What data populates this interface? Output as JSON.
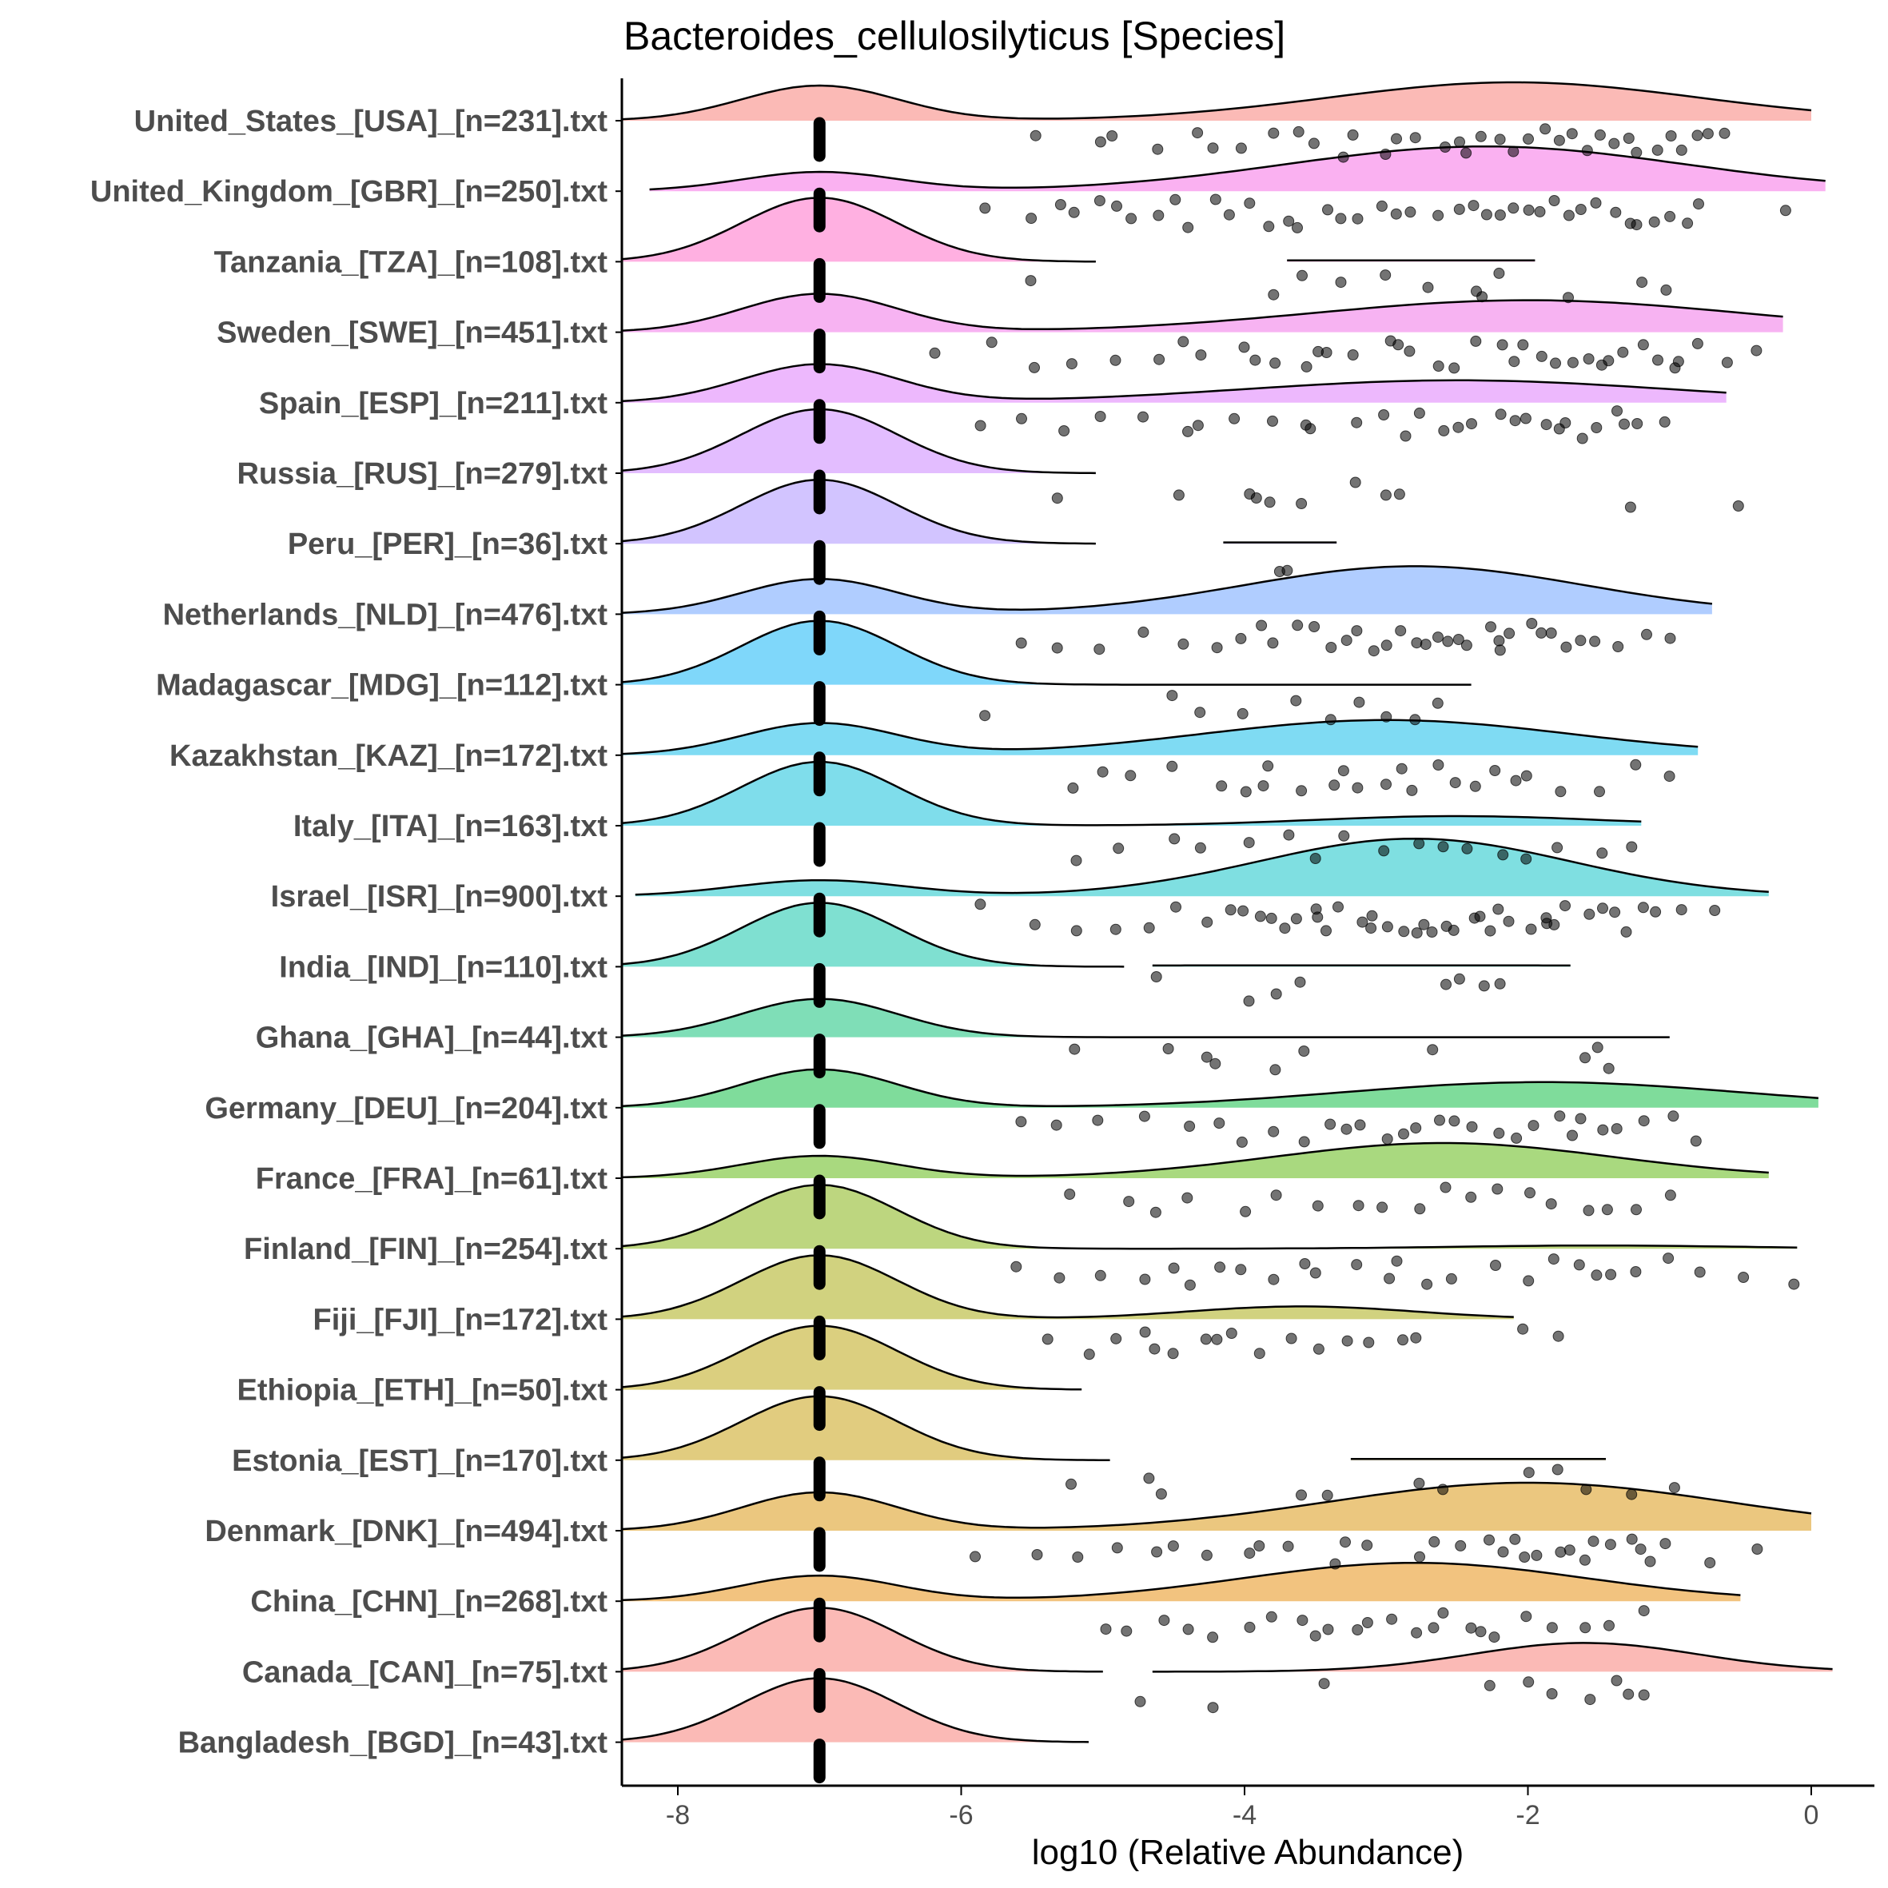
{
  "chart_data": {
    "type": "raincloud",
    "title": "Bacteroides_cellulosilyticus [Species]",
    "xlabel": "log10 (Relative Abundance)",
    "ylabel": "",
    "xlim": [
      -8.4,
      0.4
    ],
    "xticks": [
      -8,
      -6,
      -4,
      -2,
      0
    ],
    "xtick_labels": [
      "-8",
      "-6",
      "-4",
      "-2",
      "0"
    ],
    "zero_value": -7,
    "grid": false,
    "legend": "none",
    "series": [
      {
        "name": "United_States_[USA]_[n=231].txt",
        "color": "#F8766D",
        "low": -8.4,
        "high": 0.0,
        "ratio": 0.75,
        "peaks": [
          [
            -7,
            0.55,
            0.55
          ],
          [
            -2.1,
            0.6,
            1.3
          ]
        ],
        "points": [
          -5.5,
          -5.0,
          -4.6,
          -4.2,
          -3.8,
          -3.5,
          -3.2,
          -3.0,
          -2.8,
          -2.5,
          -2.3,
          -2.1,
          -1.9,
          -1.7,
          -1.5,
          -1.3,
          -1.1,
          -0.9,
          -0.7,
          -4.9,
          -4.0,
          -3.6,
          -2.9,
          -2.4,
          -2.0,
          -1.8,
          -1.6,
          -1.4,
          -1.2,
          -0.8,
          -0.6,
          -4.3,
          -3.3,
          -2.6,
          -2.2,
          -1.0
        ]
      },
      {
        "name": "United_Kingdom_[GBR]_[n=250].txt",
        "color": "#F564E3",
        "low": -8.2,
        "high": 0.1,
        "ratio": 0.95,
        "peaks": [
          [
            -7,
            0.3,
            0.55
          ],
          [
            -2.3,
            0.7,
            1.4
          ]
        ],
        "points": [
          -5.8,
          -5.5,
          -5.2,
          -5.0,
          -4.8,
          -4.6,
          -4.4,
          -4.2,
          -4.0,
          -3.8,
          -3.6,
          -3.4,
          -3.2,
          -3.0,
          -2.8,
          -2.6,
          -2.4,
          -2.2,
          -2.0,
          -1.8,
          -1.6,
          -1.4,
          -1.2,
          -1.0,
          -0.8,
          -0.2,
          -5.3,
          -4.9,
          -4.5,
          -4.1,
          -3.7,
          -3.3,
          -2.9,
          -2.5,
          -2.3,
          -2.1,
          -1.9,
          -1.7,
          -1.5,
          -1.3,
          -1.1,
          -0.9
        ]
      },
      {
        "name": "Tanzania_[TZA]_[n=108].txt",
        "color": "#FF61C3",
        "low": -8.4,
        "high": -5.05,
        "ratio": 0.2,
        "peaks": [
          [
            -7,
            1.0,
            0.55
          ]
        ],
        "low2": -3.7,
        "high2": -1.95,
        "points": [
          -5.5,
          -3.8,
          -3.6,
          -3.3,
          -3.0,
          -2.7,
          -2.4,
          -2.2,
          -1.7,
          -1.2,
          -1.0,
          -2.3
        ]
      },
      {
        "name": "Sweden_[SWE]_[n=451].txt",
        "color": "#F067E6",
        "low": -8.4,
        "high": -0.2,
        "ratio": 0.7,
        "peaks": [
          [
            -7,
            0.6,
            0.55
          ],
          [
            -2.0,
            0.5,
            1.5
          ]
        ],
        "points": [
          -6.2,
          -5.8,
          -5.5,
          -5.2,
          -4.9,
          -4.6,
          -4.3,
          -4.0,
          -3.8,
          -3.6,
          -3.4,
          -3.2,
          -3.0,
          -2.8,
          -2.6,
          -2.4,
          -2.2,
          -2.0,
          -1.8,
          -1.6,
          -1.4,
          -1.2,
          -1.0,
          -0.8,
          -0.6,
          -0.4,
          -4.4,
          -3.9,
          -3.5,
          -2.9,
          -2.5,
          -2.1,
          -1.9,
          -1.7,
          -1.5,
          -1.3,
          -1.1,
          -0.9
        ]
      },
      {
        "name": "Spain_[ESP]_[n=211].txt",
        "color": "#DB72FB",
        "low": -8.4,
        "high": -0.6,
        "ratio": 0.7,
        "peaks": [
          [
            -7,
            0.6,
            0.55
          ],
          [
            -2.5,
            0.35,
            1.5
          ]
        ],
        "points": [
          -5.9,
          -5.6,
          -5.3,
          -5.0,
          -4.7,
          -4.4,
          -4.1,
          -3.8,
          -3.5,
          -3.2,
          -3.0,
          -2.8,
          -2.6,
          -2.4,
          -2.2,
          -2.0,
          -1.8,
          -1.6,
          -1.4,
          -1.2,
          -1.0,
          -4.3,
          -3.6,
          -2.9,
          -2.5,
          -2.1,
          -1.9,
          -1.7,
          -1.5,
          -1.3
        ]
      },
      {
        "name": "Russia_[RUS]_[n=279].txt",
        "color": "#C77CFF",
        "low": -8.4,
        "high": -5.05,
        "ratio": 0.2,
        "peaks": [
          [
            -7,
            1.0,
            0.55
          ]
        ],
        "points": [
          -5.3,
          -4.5,
          -4.0,
          -3.9,
          -3.8,
          -3.6,
          -3.2,
          -3.0,
          -2.9,
          -1.3,
          -0.5
        ]
      },
      {
        "name": "Peru_[PER]_[n=36].txt",
        "color": "#A58AFF",
        "low": -8.4,
        "high": -5.05,
        "ratio": 0.2,
        "peaks": [
          [
            -7,
            1.0,
            0.55
          ]
        ],
        "low2": -4.15,
        "high2": -3.35,
        "points": [
          -3.7,
          -3.72
        ]
      },
      {
        "name": "Netherlands_[NLD]_[n=476].txt",
        "color": "#619CFF",
        "low": -8.4,
        "high": -0.7,
        "ratio": 0.75,
        "peaks": [
          [
            -7,
            0.55,
            0.55
          ],
          [
            -2.8,
            0.75,
            1.2
          ]
        ],
        "points": [
          -5.6,
          -5.3,
          -5.0,
          -4.7,
          -4.4,
          -4.2,
          -4.0,
          -3.8,
          -3.6,
          -3.4,
          -3.2,
          -3.0,
          -2.8,
          -2.6,
          -2.4,
          -2.2,
          -2.0,
          -1.8,
          -1.6,
          -1.4,
          -1.2,
          -1.0,
          -3.9,
          -3.5,
          -3.1,
          -2.9,
          -2.7,
          -2.5,
          -2.3,
          -2.1,
          -1.9,
          -1.7,
          -1.5,
          -3.3,
          -2.6,
          -2.2
        ]
      },
      {
        "name": "Madagascar_[MDG]_[n=112].txt",
        "color": "#00B0F6",
        "low": -8.4,
        "high": -2.4,
        "ratio": 0.3,
        "peaks": [
          [
            -7,
            1.0,
            0.55
          ]
        ],
        "points": [
          -5.8,
          -4.5,
          -4.3,
          -4.0,
          -3.6,
          -3.4,
          -3.2,
          -3.0,
          -2.8,
          -2.6
        ]
      },
      {
        "name": "Kazakhstan_[KAZ]_[n=172].txt",
        "color": "#00B8E7",
        "low": -8.4,
        "high": -0.8,
        "ratio": 0.85,
        "peaks": [
          [
            -7,
            0.5,
            0.55
          ],
          [
            -3.0,
            0.55,
            1.3
          ]
        ],
        "points": [
          -5.2,
          -5.0,
          -4.8,
          -4.5,
          -4.2,
          -4.0,
          -3.8,
          -3.6,
          -3.4,
          -3.2,
          -3.0,
          -2.8,
          -2.6,
          -2.4,
          -2.2,
          -2.0,
          -1.8,
          -1.5,
          -1.2,
          -1.0,
          -3.9,
          -3.3,
          -2.9,
          -2.5,
          -2.1
        ]
      },
      {
        "name": "Italy_[ITA]_[n=163].txt",
        "color": "#00BCD8",
        "low": -8.4,
        "high": -1.2,
        "ratio": 0.4,
        "peaks": [
          [
            -7,
            1.0,
            0.55
          ],
          [
            -2.5,
            0.15,
            1.0
          ]
        ],
        "points": [
          -5.2,
          -4.9,
          -4.5,
          -4.3,
          -4.0,
          -3.7,
          -3.5,
          -3.3,
          -3.0,
          -2.8,
          -2.6,
          -2.4,
          -2.2,
          -2.0,
          -1.8,
          -1.5,
          -1.3
        ]
      },
      {
        "name": "Israel_[ISR]_[n=900].txt",
        "color": "#00BFC4",
        "low": -8.3,
        "high": -0.3,
        "ratio": 0.75,
        "peaks": [
          [
            -7,
            0.25,
            0.6
          ],
          [
            -2.8,
            0.9,
            1.1
          ]
        ],
        "points": [
          -5.9,
          -5.5,
          -5.2,
          -4.9,
          -4.7,
          -4.5,
          -4.3,
          -4.1,
          -3.9,
          -3.7,
          -3.5,
          -3.3,
          -3.1,
          -2.9,
          -2.7,
          -2.5,
          -2.3,
          -2.1,
          -1.9,
          -1.7,
          -1.5,
          -1.3,
          -1.1,
          -0.9,
          -0.7,
          -4.0,
          -3.8,
          -3.6,
          -3.4,
          -3.2,
          -3.0,
          -2.8,
          -2.6,
          -2.4,
          -2.2,
          -2.0,
          -1.8,
          -3.5,
          -3.1,
          -2.7,
          -2.3,
          -1.9,
          -1.6,
          -1.4,
          -1.2
        ]
      },
      {
        "name": "India_[IND]_[n=110].txt",
        "color": "#00C1A3",
        "low": -8.4,
        "high": -4.85,
        "ratio": 0.2,
        "peaks": [
          [
            -7,
            1.0,
            0.55
          ]
        ],
        "low2": -4.65,
        "high2": -1.7,
        "points": [
          -4.6,
          -4.0,
          -3.8,
          -3.6,
          -2.6,
          -2.5,
          -2.3,
          -2.2
        ]
      },
      {
        "name": "Ghana_[GHA]_[n=44].txt",
        "color": "#00BE70",
        "low": -8.4,
        "high": -1.0,
        "ratio": 0.95,
        "peaks": [
          [
            -7,
            0.6,
            0.55
          ]
        ],
        "points": [
          -5.2,
          -4.5,
          -4.3,
          -4.2,
          -3.8,
          -3.6,
          -2.7,
          -1.6,
          -1.5,
          -1.4
        ]
      },
      {
        "name": "Germany_[DEU]_[n=204].txt",
        "color": "#00BA38",
        "low": -8.4,
        "high": 0.05,
        "ratio": 0.75,
        "peaks": [
          [
            -7,
            0.6,
            0.55
          ],
          [
            -1.9,
            0.4,
            1.4
          ]
        ],
        "points": [
          -5.6,
          -5.3,
          -5.0,
          -4.7,
          -4.4,
          -4.2,
          -4.0,
          -3.8,
          -3.6,
          -3.4,
          -3.2,
          -3.0,
          -2.8,
          -2.6,
          -2.4,
          -2.2,
          -2.0,
          -1.8,
          -1.6,
          -1.4,
          -1.2,
          -1.0,
          -0.8,
          -3.3,
          -2.9,
          -2.5,
          -2.1,
          -1.7,
          -1.5
        ]
      },
      {
        "name": "France_[FRA]_[n=61].txt",
        "color": "#53B400",
        "low": -8.4,
        "high": -0.3,
        "ratio": 0.8,
        "peaks": [
          [
            -7,
            0.35,
            0.55
          ],
          [
            -2.6,
            0.55,
            1.2
          ]
        ],
        "points": [
          -5.2,
          -4.8,
          -4.6,
          -4.4,
          -4.0,
          -3.8,
          -3.5,
          -3.2,
          -3.0,
          -2.8,
          -2.6,
          -2.4,
          -2.2,
          -2.0,
          -1.8,
          -1.6,
          -1.4,
          -1.2,
          -1.0
        ]
      },
      {
        "name": "Finland_[FIN]_[n=254].txt",
        "color": "#7CAE00",
        "low": -8.4,
        "high": -0.1,
        "ratio": 0.3,
        "peaks": [
          [
            -7,
            1.0,
            0.55
          ],
          [
            -1.5,
            0.05,
            1.0
          ]
        ],
        "points": [
          -5.6,
          -5.3,
          -5.0,
          -4.7,
          -4.5,
          -4.2,
          -4.0,
          -3.8,
          -3.5,
          -3.2,
          -3.0,
          -2.7,
          -2.5,
          -2.2,
          -2.0,
          -1.8,
          -1.6,
          -1.4,
          -1.2,
          -1.0,
          -0.8,
          -0.5,
          -0.1,
          -4.4,
          -3.6,
          -2.9,
          -1.5
        ]
      },
      {
        "name": "Fiji_[FJI]_[n=172].txt",
        "color": "#A3A500",
        "low": -8.4,
        "high": -2.1,
        "ratio": 0.35,
        "peaks": [
          [
            -7,
            1.0,
            0.55
          ],
          [
            -3.6,
            0.2,
            0.8
          ]
        ],
        "points": [
          -5.4,
          -5.1,
          -4.9,
          -4.7,
          -4.5,
          -4.3,
          -4.1,
          -3.9,
          -3.7,
          -3.5,
          -3.3,
          -3.1,
          -2.9,
          -2.8,
          -2.0,
          -1.8,
          -4.6,
          -4.2
        ]
      },
      {
        "name": "Ethiopia_[ETH]_[n=50].txt",
        "color": "#B79F00",
        "low": -8.4,
        "high": -5.15,
        "ratio": 0.0,
        "peaks": [
          [
            -7,
            1.0,
            0.55
          ]
        ],
        "points": []
      },
      {
        "name": "Estonia_[EST]_[n=170].txt",
        "color": "#C49A00",
        "low": -8.4,
        "high": -4.95,
        "ratio": 0.2,
        "peaks": [
          [
            -7,
            1.0,
            0.55
          ]
        ],
        "low2": -3.25,
        "high2": -1.45,
        "points": [
          -5.2,
          -4.7,
          -4.6,
          -3.6,
          -3.4,
          -2.8,
          -2.6,
          -2.0,
          -1.8,
          -1.6,
          -1.3,
          -1.0
        ]
      },
      {
        "name": "Denmark_[DNK]_[n=494].txt",
        "color": "#D89000",
        "low": -8.4,
        "high": 0.0,
        "ratio": 0.65,
        "peaks": [
          [
            -7,
            0.6,
            0.55
          ],
          [
            -2.0,
            0.75,
            1.4
          ]
        ],
        "points": [
          -5.9,
          -5.5,
          -5.2,
          -4.9,
          -4.6,
          -4.3,
          -4.0,
          -3.7,
          -3.4,
          -3.1,
          -2.8,
          -2.5,
          -2.2,
          -1.9,
          -1.6,
          -1.3,
          -1.0,
          -0.7,
          -0.4,
          -4.5,
          -3.9,
          -3.3,
          -2.7,
          -2.1,
          -1.8,
          -1.5,
          -1.2,
          -2.3,
          -2.0,
          -1.7,
          -1.4,
          -1.1
        ]
      },
      {
        "name": "China_[CHN]_[n=268].txt",
        "color": "#E58700",
        "low": -8.4,
        "high": -0.5,
        "ratio": 0.85,
        "peaks": [
          [
            -7,
            0.4,
            0.55
          ],
          [
            -2.8,
            0.6,
            1.2
          ]
        ],
        "points": [
          -5.0,
          -4.8,
          -4.6,
          -4.4,
          -4.2,
          -4.0,
          -3.8,
          -3.6,
          -3.4,
          -3.2,
          -3.0,
          -2.8,
          -2.6,
          -2.4,
          -2.2,
          -2.0,
          -1.8,
          -1.6,
          -1.4,
          -1.2,
          -3.5,
          -3.1,
          -2.7,
          -2.3
        ]
      },
      {
        "name": "Canada_[CAN]_[n=75].txt",
        "color": "#F8766D",
        "low": -8.4,
        "high": -5.0,
        "ratio": 0.4,
        "peaks": [
          [
            -7,
            1.0,
            0.55
          ]
        ],
        "low2": -4.65,
        "high2": 0.15,
        "peaks2": [
          [
            -1.6,
            0.45,
            0.8
          ]
        ],
        "points": [
          -4.7,
          -4.2,
          -3.4,
          -2.0,
          -1.8,
          -1.6,
          -1.4,
          -1.3,
          -1.2,
          -2.3
        ]
      },
      {
        "name": "Bangladesh_[BGD]_[n=43].txt",
        "color": "#F8766D",
        "low": -8.4,
        "high": -5.1,
        "ratio": 0.0,
        "peaks": [
          [
            -7,
            1.0,
            0.55
          ]
        ],
        "points": []
      }
    ]
  }
}
